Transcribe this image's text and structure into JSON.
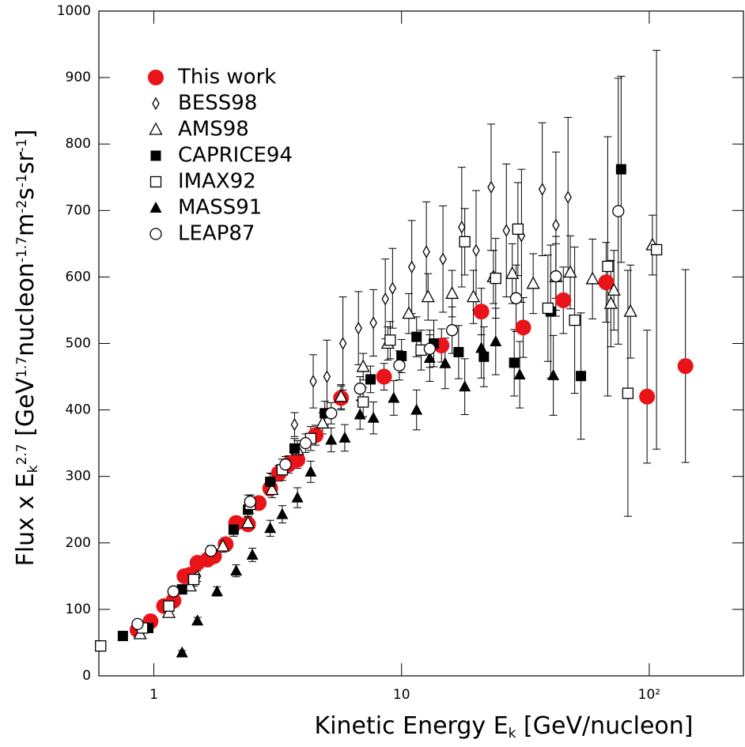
{
  "chart_data": {
    "type": "scatter",
    "x_label_parts": [
      {
        "text": "Kinetic Energy E"
      },
      {
        "text": "k",
        "shift": "sub"
      },
      {
        "text": " [GeV/nucleon]"
      }
    ],
    "y_label_parts": [
      {
        "text": "Flux x E"
      },
      {
        "text": "k",
        "shift": "sub"
      },
      {
        "text": "2.7",
        "shift": "sup"
      },
      {
        "text": " [GeV"
      },
      {
        "text": "1.7",
        "shift": "sup"
      },
      {
        "text": "nucleon"
      },
      {
        "text": "-1.7",
        "shift": "sup"
      },
      {
        "text": "m"
      },
      {
        "text": "-2",
        "shift": "sup"
      },
      {
        "text": "s"
      },
      {
        "text": "-1",
        "shift": "sup"
      },
      {
        "text": "sr"
      },
      {
        "text": "-1",
        "shift": "sup"
      },
      {
        "text": "]"
      }
    ],
    "xscale": "log",
    "xlim": [
      0.6,
      240
    ],
    "xticks": [
      1,
      10,
      {
        "value": 100,
        "label": "10²"
      }
    ],
    "ylim": [
      0,
      1000
    ],
    "yticks": [
      0,
      100,
      200,
      300,
      400,
      500,
      600,
      700,
      800,
      900,
      1000
    ],
    "legend": "upper left",
    "series": [
      {
        "name": "This work",
        "color": "#e8141a",
        "marker": "circle",
        "filled": true,
        "x": [
          0.86,
          0.97,
          1.1,
          1.2,
          1.33,
          1.4,
          1.5,
          1.65,
          1.75,
          1.95,
          2.15,
          2.4,
          2.65,
          2.95,
          3.2,
          3.5,
          3.8,
          4.5,
          5.7,
          8.5,
          14.5,
          21,
          31,
          45,
          67,
          98,
          140
        ],
        "values": [
          69,
          82,
          105,
          113,
          150,
          152,
          170,
          175,
          180,
          198,
          230,
          228,
          260,
          282,
          305,
          318,
          325,
          362,
          418,
          450,
          497,
          548,
          524,
          565,
          592,
          420,
          466
        ],
        "errors": [
          4,
          4,
          5,
          5,
          6,
          6,
          6,
          7,
          7,
          8,
          9,
          9,
          10,
          11,
          12,
          13,
          13,
          15,
          18,
          20,
          25,
          35,
          45,
          50,
          60,
          100,
          145
        ]
      },
      {
        "name": "BESS98",
        "color": "#000000",
        "marker": "diamond",
        "filled": false,
        "x": [
          0.87,
          1.15,
          1.5,
          2.4,
          3.0,
          3.7,
          4.4,
          5.0,
          5.8,
          6.7,
          7.7,
          8.6,
          9.2,
          11,
          12.6,
          14.7,
          17.5,
          20,
          23,
          26.5,
          30.5,
          37,
          42,
          47
        ],
        "values": [
          72,
          100,
          150,
          260,
          290,
          378,
          443,
          450,
          500,
          523,
          531,
          567,
          583,
          615,
          638,
          627,
          675,
          640,
          735,
          670,
          662,
          732,
          678,
          720
        ],
        "errors": [
          4,
          6,
          8,
          12,
          14,
          18,
          40,
          55,
          70,
          55,
          50,
          60,
          60,
          70,
          75,
          80,
          90,
          90,
          95,
          100,
          100,
          100,
          110,
          120
        ]
      },
      {
        "name": "AMS98",
        "color": "#000000",
        "marker": "triangle",
        "filled": false,
        "x": [
          0.88,
          1.15,
          1.4,
          1.9,
          2.4,
          3.0,
          3.8,
          4.8,
          5.7,
          7.0,
          8.8,
          10.7,
          12.8,
          16,
          19.5,
          23.5,
          28,
          34,
          42,
          48,
          59,
          70,
          72,
          84,
          103
        ],
        "values": [
          63,
          95,
          135,
          195,
          230,
          280,
          340,
          380,
          420,
          465,
          500,
          545,
          570,
          575,
          570,
          600,
          605,
          590,
          600,
          607,
          597,
          560,
          580,
          548,
          648
        ],
        "errors": [
          4,
          5,
          7,
          9,
          10,
          12,
          14,
          16,
          18,
          20,
          25,
          30,
          35,
          35,
          40,
          40,
          45,
          45,
          50,
          55,
          60,
          65,
          60,
          70,
          45
        ]
      },
      {
        "name": "CAPRICE94",
        "color": "#000000",
        "marker": "square",
        "filled": true,
        "x": [
          0.75,
          0.95,
          1.3,
          2.1,
          2.4,
          2.95,
          3.7,
          4.9,
          7.5,
          10,
          11.5,
          13.5,
          17,
          21.5,
          28.5,
          40,
          53,
          77
        ],
        "values": [
          60,
          72,
          130,
          220,
          250,
          292,
          342,
          395,
          446,
          481,
          510,
          500,
          487,
          480,
          471,
          548,
          451,
          762
        ],
        "errors": [
          4,
          5,
          7,
          10,
          11,
          13,
          15,
          18,
          20,
          25,
          30,
          35,
          40,
          45,
          50,
          100,
          95,
          140
        ]
      },
      {
        "name": "IMAX92",
        "color": "#000000",
        "marker": "square",
        "filled": false,
        "x": [
          0.61,
          0.9,
          1.15,
          1.45,
          2.45,
          3.3,
          4.3,
          7,
          9,
          12,
          18,
          24,
          29.5,
          39,
          50,
          68,
          82,
          107
        ],
        "values": [
          45,
          72,
          105,
          145,
          258,
          310,
          357,
          412,
          505,
          490,
          653,
          598,
          672,
          553,
          535,
          616,
          425,
          641
        ],
        "errors": [
          4,
          6,
          8,
          10,
          14,
          16,
          18,
          22,
          28,
          30,
          50,
          60,
          70,
          80,
          110,
          195,
          185,
          300
        ]
      },
      {
        "name": "MASS91",
        "color": "#000000",
        "marker": "triangle",
        "filled": true,
        "x": [
          1.3,
          1.5,
          1.8,
          2.15,
          2.5,
          2.95,
          3.3,
          3.8,
          4.3,
          5.2,
          5.9,
          6.8,
          7.7,
          9.3,
          11.5,
          13,
          15,
          18,
          21,
          24,
          30,
          41
        ],
        "values": [
          35,
          83,
          127,
          158,
          182,
          222,
          243,
          268,
          307,
          355,
          358,
          393,
          388,
          418,
          400,
          478,
          470,
          435,
          493,
          503,
          453,
          452
        ],
        "errors": [
          3,
          5,
          7,
          9,
          10,
          12,
          13,
          15,
          16,
          18,
          20,
          22,
          24,
          26,
          30,
          35,
          38,
          42,
          45,
          50,
          50,
          60
        ]
      },
      {
        "name": "LEAP87",
        "color": "#000000",
        "marker": "circle",
        "filled": false,
        "x": [
          0.86,
          1.2,
          1.7,
          2.45,
          3.4,
          4.1,
          5.2,
          6.8,
          9.8,
          13,
          16,
          29,
          42,
          75
        ],
        "values": [
          78,
          127,
          188,
          262,
          318,
          350,
          395,
          432,
          467,
          492,
          520,
          568,
          601,
          699
        ],
        "errors": [
          4,
          6,
          8,
          10,
          12,
          14,
          16,
          18,
          22,
          28,
          35,
          50,
          60,
          200
        ]
      }
    ]
  }
}
